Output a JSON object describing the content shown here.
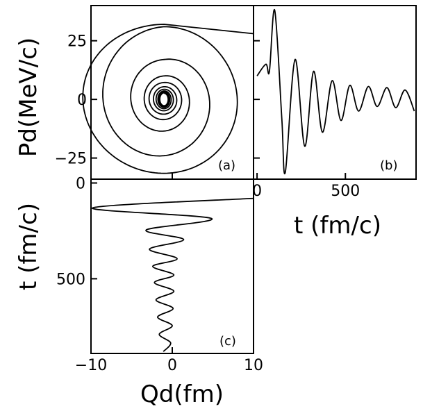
{
  "chart_data": [
    {
      "id": "a",
      "type": "line",
      "panel_label": "(a)",
      "xlabel": "",
      "ylabel": "Pd(MeV/c)",
      "xlim": [
        -10,
        10
      ],
      "ylim": [
        -34,
        40
      ],
      "yticks": [
        25,
        0,
        -25
      ],
      "ytick_labels": [
        "25",
        "0",
        "−25"
      ],
      "grid": false,
      "description_type": "phase-space spiral",
      "spiral": {
        "center_x": -1.0,
        "center_y": 0.0,
        "start_point": [
          10,
          28
        ],
        "x_amplitudes": [
          10.5,
          8.5,
          4.6,
          2.6,
          2.0,
          1.4,
          1.05,
          0.8,
          0.65,
          0.55,
          0.48
        ],
        "y_amplitudes": [
          32,
          31,
          17,
          10,
          7.2,
          5.4,
          4.3,
          3.6,
          3.1,
          2.8,
          2.6
        ]
      }
    },
    {
      "id": "b",
      "type": "line",
      "panel_label": "(b)",
      "xlabel": "t (fm/c)",
      "ylabel": "",
      "xlim": [
        -20,
        900
      ],
      "ylim": [
        -34,
        40
      ],
      "xticks": [
        0,
        500
      ],
      "xtick_labels": [
        "0",
        "500"
      ],
      "grid": false,
      "x": [
        0,
        50,
        70,
        100,
        140,
        160,
        215,
        270,
        320,
        370,
        425,
        475,
        525,
        575,
        630,
        680,
        735,
        785,
        838,
        890
      ],
      "y": [
        10,
        15,
        12,
        38,
        -8,
        -31,
        17,
        -20,
        12,
        -14,
        8,
        -9,
        6,
        -5,
        5.5,
        -3,
        5,
        -3.5,
        4,
        -5
      ]
    },
    {
      "id": "c",
      "type": "line",
      "panel_label": "(c)",
      "xlabel": "Qd(fm)",
      "ylabel": "t (fm/c)",
      "xlim": [
        -10,
        10
      ],
      "ylim": [
        890,
        -20
      ],
      "xticks": [
        -10,
        0,
        10
      ],
      "xtick_labels": [
        "−10",
        "0",
        "10"
      ],
      "yticks": [
        0,
        500
      ],
      "ytick_labels": [
        "0",
        "500"
      ],
      "grid": false,
      "qd": [
        10,
        -9.8,
        4.8,
        -3.2,
        1.4,
        -2.8,
        0.6,
        -2.4,
        0.2,
        -2.2,
        0.2,
        -2.0,
        0.1,
        -1.8,
        0.0,
        -1.6,
        -0.2,
        -1.1
      ],
      "t": [
        80,
        130,
        185,
        245,
        295,
        345,
        395,
        435,
        480,
        520,
        565,
        610,
        655,
        700,
        745,
        790,
        835,
        880
      ]
    }
  ]
}
